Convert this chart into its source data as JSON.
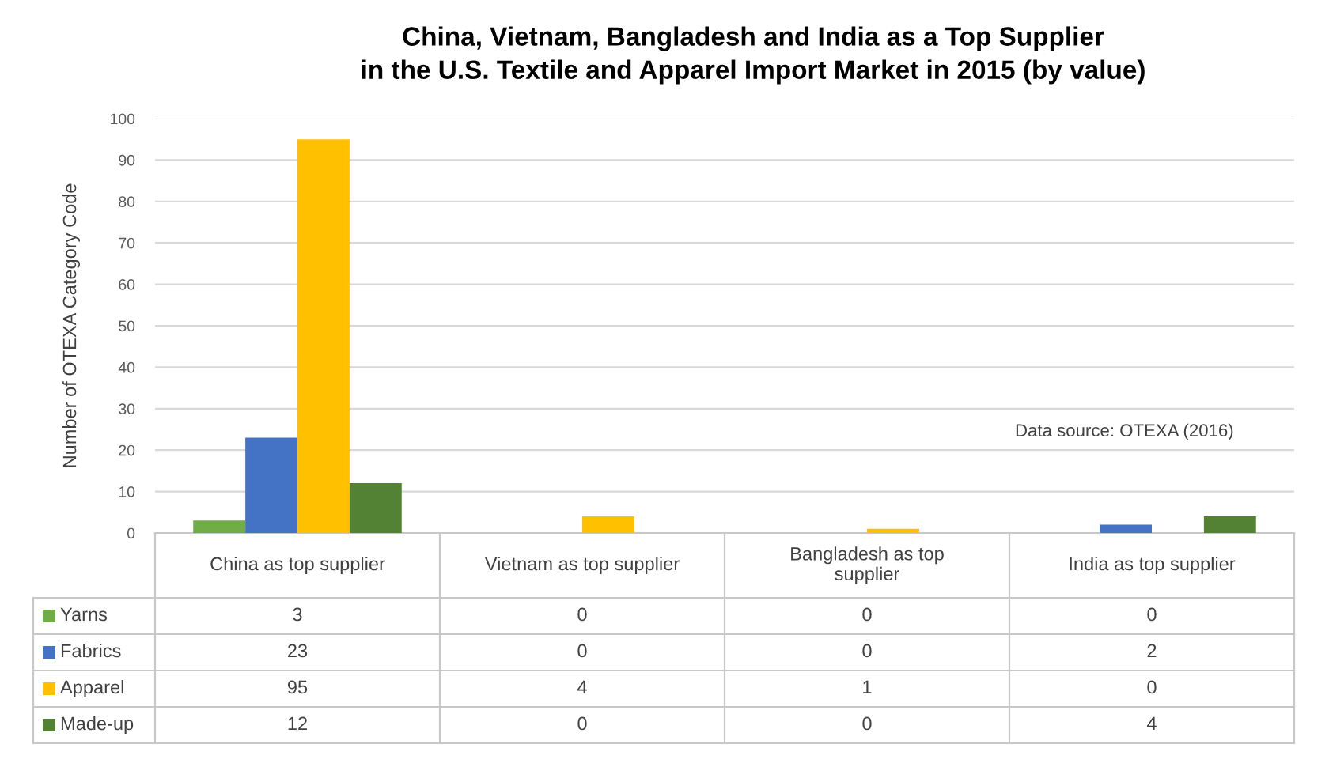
{
  "chart_data": {
    "type": "bar",
    "title": "China, Vietnam, Bangladesh and India as a Top Supplier\nin the U.S. Textile and Apparel Import Market in 2015 (by value)",
    "ylabel": "Number of OTEXA Category Code",
    "annotations": [
      "Data source: OTEXA (2016)"
    ],
    "categories": [
      "China as top supplier",
      "Vietnam as top supplier",
      "Bangladesh as top supplier",
      "India as top supplier"
    ],
    "series": [
      {
        "name": "Yarns",
        "color": "#70ad47",
        "values": [
          3,
          0,
          0,
          0
        ]
      },
      {
        "name": "Fabrics",
        "color": "#4472c4",
        "values": [
          23,
          0,
          0,
          2
        ]
      },
      {
        "name": "Apparel",
        "color": "#ffc000",
        "values": [
          95,
          4,
          1,
          0
        ]
      },
      {
        "name": "Made-up",
        "color": "#548235",
        "values": [
          12,
          0,
          0,
          4
        ]
      }
    ],
    "ylim": [
      0,
      100
    ],
    "yticks": [
      0,
      10,
      20,
      30,
      40,
      50,
      60,
      70,
      80,
      90,
      100
    ],
    "grid": "y",
    "legend": "bottom left",
    "data_labels": true
  }
}
